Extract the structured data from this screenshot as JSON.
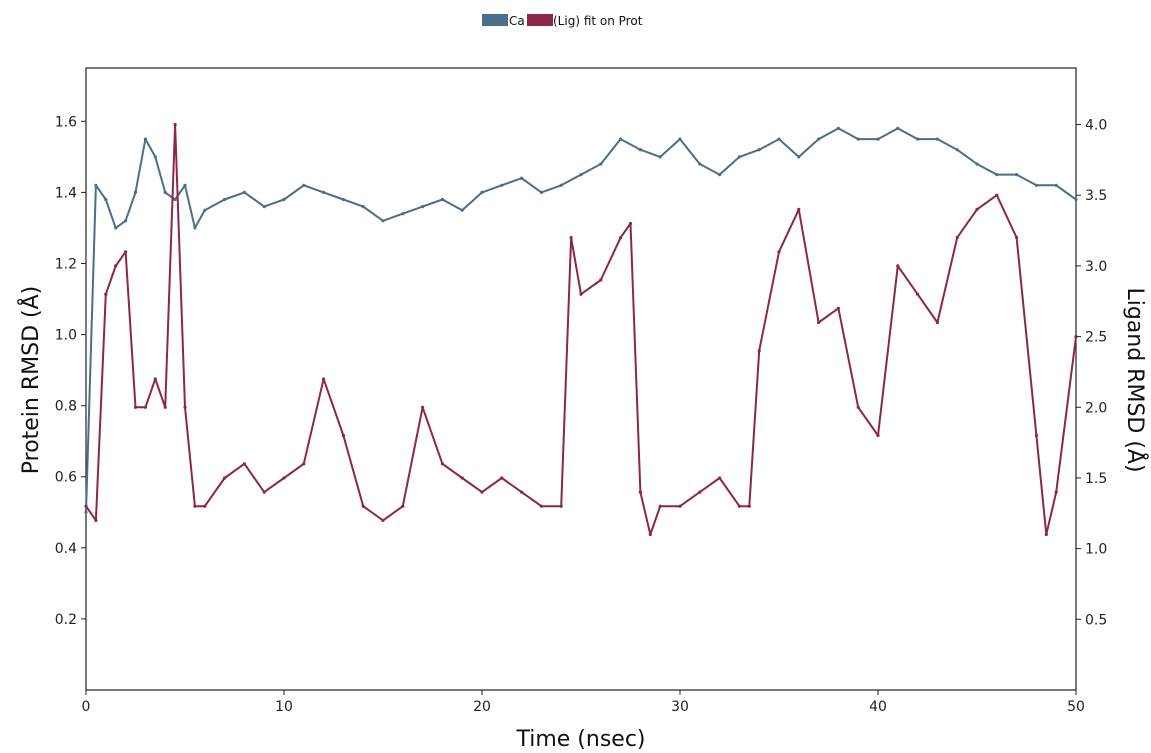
{
  "chart_data": {
    "type": "line",
    "title": "",
    "xlabel": "Time (nsec)",
    "ylabel_left": "Protein RMSD (Å)",
    "ylabel_right": "Ligand RMSD (Å)",
    "xlim": [
      0,
      50
    ],
    "ylim_left": [
      0.0,
      1.75
    ],
    "ylim_right": [
      0.0,
      4.4
    ],
    "x_ticks": [
      0,
      10,
      20,
      30,
      40,
      50
    ],
    "y_ticks_left": [
      0.2,
      0.4,
      0.6,
      0.8,
      1.0,
      1.2,
      1.4,
      1.6
    ],
    "y_ticks_right": [
      0.5,
      1.0,
      1.5,
      2.0,
      2.5,
      3.0,
      3.5,
      4.0
    ],
    "grid": false,
    "legend_position": "top-center",
    "legend_text": "(Lig) fit on Prot",
    "legend_text_partial": "Ca",
    "series": [
      {
        "name": "Cα",
        "axis": "left",
        "color": "#4a6f8a",
        "x": [
          0,
          0.5,
          1,
          1.5,
          2,
          2.5,
          3,
          3.5,
          4,
          4.5,
          5,
          5.5,
          6,
          7,
          8,
          9,
          10,
          11,
          12,
          13,
          14,
          15,
          16,
          17,
          18,
          19,
          20,
          21,
          22,
          23,
          24,
          25,
          26,
          27,
          28,
          29,
          30,
          31,
          32,
          33,
          34,
          35,
          36,
          37,
          38,
          39,
          40,
          41,
          42,
          43,
          44,
          45,
          46,
          47,
          48,
          49,
          50
        ],
        "values": [
          0.5,
          1.42,
          1.38,
          1.3,
          1.32,
          1.4,
          1.55,
          1.5,
          1.4,
          1.38,
          1.42,
          1.3,
          1.35,
          1.38,
          1.4,
          1.36,
          1.38,
          1.42,
          1.4,
          1.38,
          1.36,
          1.32,
          1.34,
          1.36,
          1.38,
          1.35,
          1.4,
          1.42,
          1.44,
          1.4,
          1.42,
          1.45,
          1.48,
          1.55,
          1.52,
          1.5,
          1.55,
          1.48,
          1.45,
          1.5,
          1.52,
          1.55,
          1.5,
          1.55,
          1.58,
          1.55,
          1.55,
          1.58,
          1.55,
          1.55,
          1.52,
          1.48,
          1.45,
          1.45,
          1.42,
          1.42,
          1.38
        ]
      },
      {
        "name": "(Lig) fit on Prot",
        "axis": "right",
        "color": "#8c2748",
        "x": [
          0,
          0.5,
          1,
          1.5,
          2,
          2.5,
          3,
          3.5,
          4,
          4.5,
          5,
          5.5,
          6,
          7,
          8,
          9,
          10,
          11,
          12,
          13,
          14,
          15,
          16,
          17,
          18,
          19,
          20,
          21,
          22,
          23,
          24,
          24.5,
          25,
          26,
          27,
          27.5,
          28,
          28.5,
          29,
          30,
          31,
          32,
          33,
          33.5,
          34,
          35,
          36,
          37,
          38,
          39,
          40,
          41,
          42,
          43,
          44,
          45,
          46,
          47,
          48,
          48.5,
          49,
          50
        ],
        "values": [
          1.3,
          1.2,
          2.8,
          3.0,
          3.1,
          2.0,
          2.0,
          2.2,
          2.0,
          4.0,
          2.0,
          1.3,
          1.3,
          1.5,
          1.6,
          1.4,
          1.5,
          1.6,
          2.2,
          1.8,
          1.3,
          1.2,
          1.3,
          2.0,
          1.6,
          1.5,
          1.4,
          1.5,
          1.4,
          1.3,
          1.3,
          3.2,
          2.8,
          2.9,
          3.2,
          3.3,
          1.4,
          1.1,
          1.3,
          1.3,
          1.4,
          1.5,
          1.3,
          1.3,
          2.4,
          3.1,
          3.4,
          2.6,
          2.7,
          2.0,
          1.8,
          3.0,
          2.8,
          2.6,
          3.2,
          3.4,
          3.5,
          3.2,
          1.8,
          1.1,
          1.4,
          2.5
        ]
      }
    ]
  }
}
